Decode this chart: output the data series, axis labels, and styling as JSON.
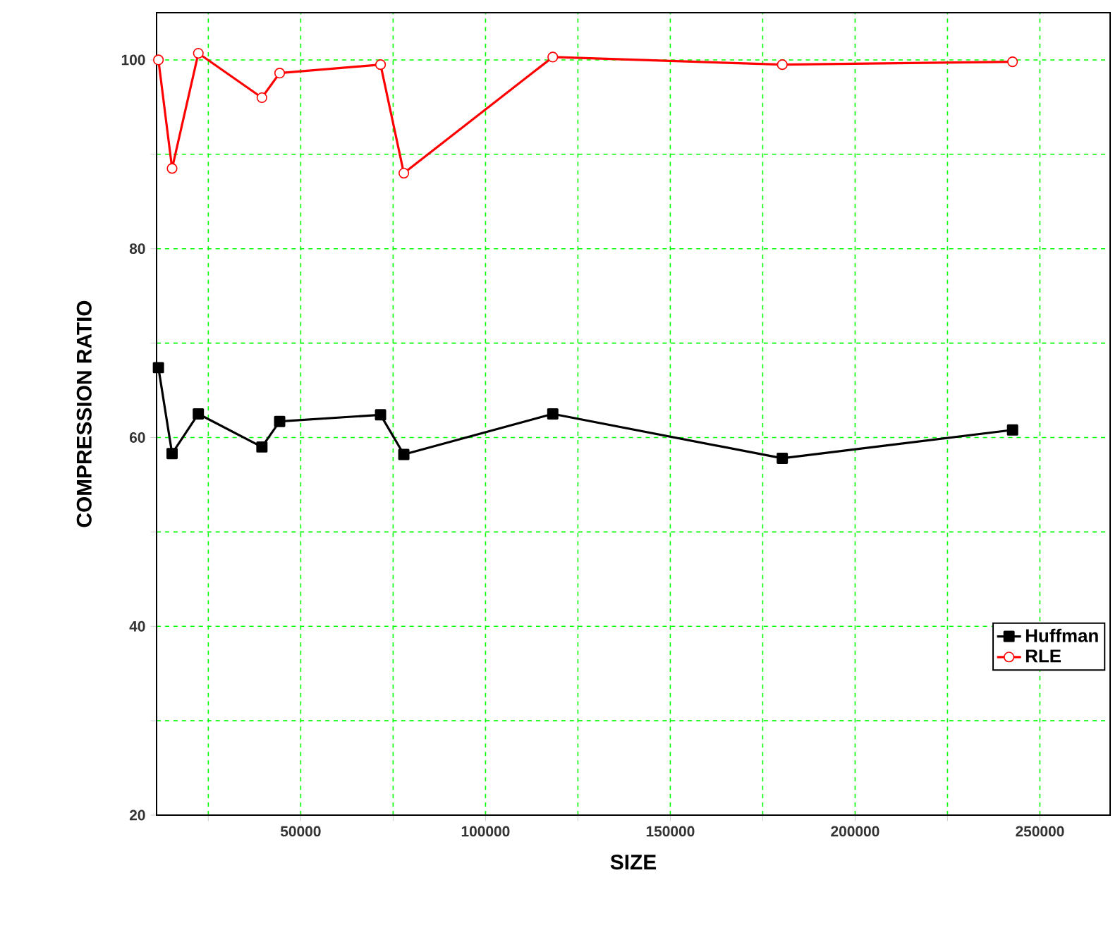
{
  "chart_data": {
    "type": "line",
    "xlabel": "SIZE",
    "ylabel": "COMPRESSION RATIO",
    "x": [
      11500,
      15200,
      22300,
      39500,
      44300,
      71600,
      77900,
      118200,
      180300,
      242600
    ],
    "series": [
      {
        "name": "Huffman",
        "color": "#000000",
        "marker": "square",
        "values": [
          67.4,
          58.3,
          62.5,
          59.0,
          61.7,
          62.4,
          58.2,
          62.5,
          57.8,
          60.8
        ]
      },
      {
        "name": "RLE",
        "color": "#ff0000",
        "marker": "circle",
        "values": [
          100.0,
          88.5,
          100.7,
          96.0,
          98.6,
          99.5,
          88.0,
          100.3,
          99.5,
          99.8
        ]
      }
    ],
    "xlim": [
      11000,
      269000
    ],
    "ylim": [
      20,
      105
    ],
    "xticks": [
      {
        "value": 25000,
        "label": null
      },
      50000,
      {
        "value": 75000,
        "label": null
      },
      100000,
      {
        "value": 125000,
        "label": null
      },
      150000,
      {
        "value": 175000,
        "label": null
      },
      200000,
      {
        "value": 225000,
        "label": null
      },
      250000
    ],
    "yticks": [
      20,
      {
        "value": 30,
        "label": null
      },
      40,
      {
        "value": 50,
        "label": null
      },
      60,
      {
        "value": 70,
        "label": null
      },
      80,
      {
        "value": 90,
        "label": null
      },
      100
    ],
    "grid": true,
    "legend": "bottom right"
  }
}
